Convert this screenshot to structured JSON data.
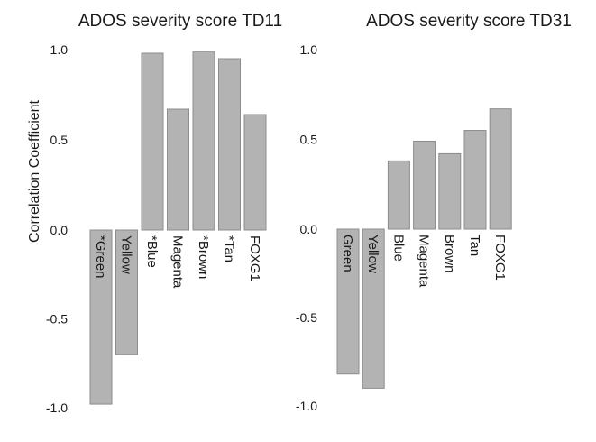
{
  "chart_data": [
    {
      "type": "bar",
      "title": "ADOS severity score TD11",
      "ylabel": "Correlation Coefficient",
      "ylim": [
        -1.0,
        1.0
      ],
      "yticks": [
        "1.0",
        "0.5",
        "0.0",
        "-0.5",
        "-1.0"
      ],
      "categories": [
        "*Green",
        "Yellow",
        "*Blue",
        "Magenta",
        "*Brown",
        "*Tan",
        "FOXG1"
      ],
      "values": [
        -0.98,
        -0.7,
        0.98,
        0.67,
        0.99,
        0.95,
        0.64
      ],
      "bar_color": "#b3b3b3",
      "grid": false
    },
    {
      "type": "bar",
      "title": "ADOS severity score TD31",
      "ylabel": "",
      "ylim": [
        -1.0,
        1.0
      ],
      "yticks": [
        "1.0",
        "0.5",
        "0.0",
        "-0.5",
        "-1.0"
      ],
      "categories": [
        "Green",
        "Yellow",
        "Blue",
        "Magenta",
        "Brown",
        "Tan",
        "FOXG1"
      ],
      "values": [
        -0.82,
        -0.9,
        0.38,
        0.49,
        0.42,
        0.55,
        0.67
      ],
      "bar_color": "#b3b3b3",
      "grid": false
    }
  ]
}
